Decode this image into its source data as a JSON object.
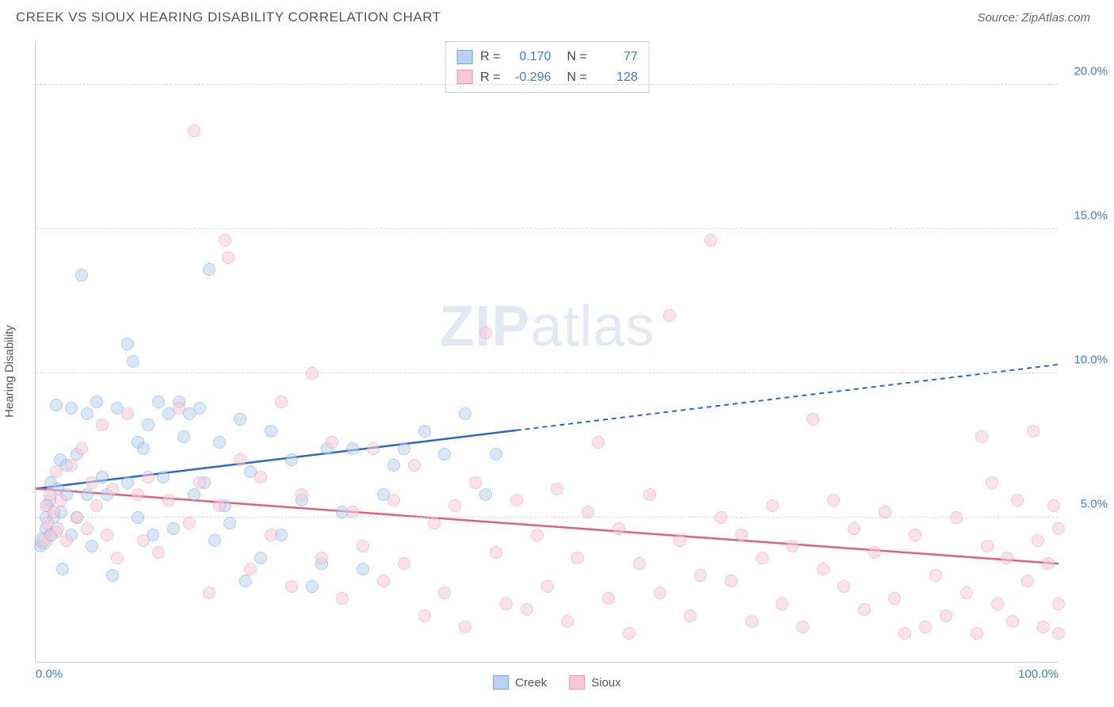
{
  "header": {
    "title": "CREEK VS SIOUX HEARING DISABILITY CORRELATION CHART",
    "source": "Source: ZipAtlas.com"
  },
  "ylabel": "Hearing Disability",
  "watermark": {
    "prefix": "ZIP",
    "suffix": "atlas"
  },
  "chart": {
    "type": "scatter",
    "xlim": [
      0,
      100
    ],
    "ylim": [
      0,
      21.5
    ],
    "x_ticks": [
      {
        "v": 0,
        "label": "0.0%"
      },
      {
        "v": 100,
        "label": "100.0%"
      }
    ],
    "y_ticks": [
      {
        "v": 5,
        "label": "5.0%"
      },
      {
        "v": 10,
        "label": "10.0%"
      },
      {
        "v": 15,
        "label": "15.0%"
      },
      {
        "v": 20,
        "label": "20.0%"
      }
    ],
    "grid_color": "#dddddd",
    "background_color": "#ffffff",
    "series": [
      {
        "name": "Creek",
        "fill": "#b9d2f0",
        "stroke": "#6faae8",
        "line": "#2d69c4",
        "R": "0.170",
        "N": "77",
        "trend": {
          "x1": 0,
          "y1": 6.0,
          "x2": 100,
          "y2": 10.3,
          "solid_until_x": 47
        },
        "points": [
          {
            "x": 0.5,
            "y": 4.0
          },
          {
            "x": 0.8,
            "y": 4.2,
            "big": 1
          },
          {
            "x": 1.0,
            "y": 5.0
          },
          {
            "x": 1.0,
            "y": 4.6
          },
          {
            "x": 1.2,
            "y": 5.4
          },
          {
            "x": 1.4,
            "y": 5.6
          },
          {
            "x": 1.5,
            "y": 6.2
          },
          {
            "x": 1.5,
            "y": 4.4
          },
          {
            "x": 1.8,
            "y": 5.0
          },
          {
            "x": 2.0,
            "y": 8.9
          },
          {
            "x": 2.0,
            "y": 4.5
          },
          {
            "x": 2.2,
            "y": 6.0
          },
          {
            "x": 2.4,
            "y": 7.0
          },
          {
            "x": 2.5,
            "y": 5.2
          },
          {
            "x": 2.6,
            "y": 3.2
          },
          {
            "x": 3.0,
            "y": 6.8
          },
          {
            "x": 3.0,
            "y": 5.8
          },
          {
            "x": 3.5,
            "y": 4.4
          },
          {
            "x": 3.5,
            "y": 8.8
          },
          {
            "x": 4.0,
            "y": 7.2
          },
          {
            "x": 4.0,
            "y": 5.0
          },
          {
            "x": 4.5,
            "y": 13.4
          },
          {
            "x": 5.0,
            "y": 8.6
          },
          {
            "x": 5.0,
            "y": 5.8
          },
          {
            "x": 5.5,
            "y": 4.0
          },
          {
            "x": 6.0,
            "y": 9.0
          },
          {
            "x": 6.5,
            "y": 6.4
          },
          {
            "x": 7.0,
            "y": 5.8
          },
          {
            "x": 7.5,
            "y": 3.0
          },
          {
            "x": 8.0,
            "y": 8.8
          },
          {
            "x": 9.0,
            "y": 11.0
          },
          {
            "x": 9.0,
            "y": 6.2
          },
          {
            "x": 9.5,
            "y": 10.4
          },
          {
            "x": 10.0,
            "y": 7.6
          },
          {
            "x": 10.0,
            "y": 5.0
          },
          {
            "x": 10.5,
            "y": 7.4
          },
          {
            "x": 11.0,
            "y": 8.2
          },
          {
            "x": 11.5,
            "y": 4.4
          },
          {
            "x": 12.0,
            "y": 9.0
          },
          {
            "x": 12.5,
            "y": 6.4
          },
          {
            "x": 13.0,
            "y": 8.6
          },
          {
            "x": 13.5,
            "y": 4.6
          },
          {
            "x": 14.0,
            "y": 9.0
          },
          {
            "x": 14.5,
            "y": 7.8
          },
          {
            "x": 15.0,
            "y": 8.6
          },
          {
            "x": 15.5,
            "y": 5.8
          },
          {
            "x": 16.0,
            "y": 8.8
          },
          {
            "x": 16.5,
            "y": 6.2
          },
          {
            "x": 17.0,
            "y": 13.6
          },
          {
            "x": 17.5,
            "y": 4.2
          },
          {
            "x": 18.0,
            "y": 7.6
          },
          {
            "x": 18.5,
            "y": 5.4
          },
          {
            "x": 19.0,
            "y": 4.8
          },
          {
            "x": 20.0,
            "y": 8.4
          },
          {
            "x": 20.5,
            "y": 2.8
          },
          {
            "x": 21.0,
            "y": 6.6
          },
          {
            "x": 22.0,
            "y": 3.6
          },
          {
            "x": 23.0,
            "y": 8.0
          },
          {
            "x": 24.0,
            "y": 4.4
          },
          {
            "x": 25.0,
            "y": 7.0
          },
          {
            "x": 26.0,
            "y": 5.6
          },
          {
            "x": 27.0,
            "y": 2.6
          },
          {
            "x": 28.0,
            "y": 3.4
          },
          {
            "x": 28.5,
            "y": 7.4
          },
          {
            "x": 30.0,
            "y": 5.2
          },
          {
            "x": 31.0,
            "y": 7.4
          },
          {
            "x": 32.0,
            "y": 3.2
          },
          {
            "x": 34.0,
            "y": 5.8
          },
          {
            "x": 35.0,
            "y": 6.8
          },
          {
            "x": 36.0,
            "y": 7.4
          },
          {
            "x": 38.0,
            "y": 8.0
          },
          {
            "x": 40.0,
            "y": 7.2
          },
          {
            "x": 42.0,
            "y": 8.6
          },
          {
            "x": 44.0,
            "y": 5.8
          },
          {
            "x": 45.0,
            "y": 7.2
          }
        ]
      },
      {
        "name": "Sioux",
        "fill": "#f7cbd6",
        "stroke": "#ed9ab0",
        "line": "#e0607f",
        "R": "-0.296",
        "N": "128",
        "trend": {
          "x1": 0,
          "y1": 6.0,
          "x2": 100,
          "y2": 3.4,
          "solid_until_x": 100
        },
        "points": [
          {
            "x": 0.8,
            "y": 4.2
          },
          {
            "x": 1.0,
            "y": 5.4
          },
          {
            "x": 1.2,
            "y": 4.8
          },
          {
            "x": 1.4,
            "y": 5.8
          },
          {
            "x": 1.5,
            "y": 4.4
          },
          {
            "x": 1.8,
            "y": 5.2
          },
          {
            "x": 2.0,
            "y": 6.6
          },
          {
            "x": 2.2,
            "y": 4.6
          },
          {
            "x": 2.5,
            "y": 5.6
          },
          {
            "x": 3.0,
            "y": 4.2
          },
          {
            "x": 3.5,
            "y": 6.8
          },
          {
            "x": 4.0,
            "y": 5.0
          },
          {
            "x": 4.5,
            "y": 7.4
          },
          {
            "x": 5.0,
            "y": 4.6
          },
          {
            "x": 5.5,
            "y": 6.2
          },
          {
            "x": 6.0,
            "y": 5.4
          },
          {
            "x": 6.5,
            "y": 8.2
          },
          {
            "x": 7.0,
            "y": 4.4
          },
          {
            "x": 7.5,
            "y": 6.0
          },
          {
            "x": 8.0,
            "y": 3.6
          },
          {
            "x": 9.0,
            "y": 8.6
          },
          {
            "x": 10.0,
            "y": 5.8
          },
          {
            "x": 10.5,
            "y": 4.2
          },
          {
            "x": 11.0,
            "y": 6.4
          },
          {
            "x": 12.0,
            "y": 3.8
          },
          {
            "x": 13.0,
            "y": 5.6
          },
          {
            "x": 14.0,
            "y": 8.8
          },
          {
            "x": 15.0,
            "y": 4.8
          },
          {
            "x": 15.5,
            "y": 18.4
          },
          {
            "x": 16.0,
            "y": 6.2
          },
          {
            "x": 17.0,
            "y": 2.4
          },
          {
            "x": 18.0,
            "y": 5.4
          },
          {
            "x": 18.5,
            "y": 14.6
          },
          {
            "x": 18.8,
            "y": 14.0
          },
          {
            "x": 20.0,
            "y": 7.0
          },
          {
            "x": 21.0,
            "y": 3.2
          },
          {
            "x": 22.0,
            "y": 6.4
          },
          {
            "x": 23.0,
            "y": 4.4
          },
          {
            "x": 24.0,
            "y": 9.0
          },
          {
            "x": 25.0,
            "y": 2.6
          },
          {
            "x": 26.0,
            "y": 5.8
          },
          {
            "x": 27.0,
            "y": 10.0
          },
          {
            "x": 28.0,
            "y": 3.6
          },
          {
            "x": 29.0,
            "y": 7.6
          },
          {
            "x": 30.0,
            "y": 2.2
          },
          {
            "x": 31.0,
            "y": 5.2
          },
          {
            "x": 32.0,
            "y": 4.0
          },
          {
            "x": 33.0,
            "y": 7.4
          },
          {
            "x": 34.0,
            "y": 2.8
          },
          {
            "x": 35.0,
            "y": 5.6
          },
          {
            "x": 36.0,
            "y": 3.4
          },
          {
            "x": 37.0,
            "y": 6.8
          },
          {
            "x": 38.0,
            "y": 1.6
          },
          {
            "x": 39.0,
            "y": 4.8
          },
          {
            "x": 40.0,
            "y": 2.4
          },
          {
            "x": 41.0,
            "y": 5.4
          },
          {
            "x": 42.0,
            "y": 1.2
          },
          {
            "x": 43.0,
            "y": 6.2
          },
          {
            "x": 44.0,
            "y": 11.4
          },
          {
            "x": 45.0,
            "y": 3.8
          },
          {
            "x": 46.0,
            "y": 2.0
          },
          {
            "x": 47.0,
            "y": 5.6
          },
          {
            "x": 48.0,
            "y": 1.8
          },
          {
            "x": 49.0,
            "y": 4.4
          },
          {
            "x": 50.0,
            "y": 2.6
          },
          {
            "x": 51.0,
            "y": 6.0
          },
          {
            "x": 52.0,
            "y": 1.4
          },
          {
            "x": 53.0,
            "y": 3.6
          },
          {
            "x": 54.0,
            "y": 5.2
          },
          {
            "x": 55.0,
            "y": 7.6
          },
          {
            "x": 56.0,
            "y": 2.2
          },
          {
            "x": 57.0,
            "y": 4.6
          },
          {
            "x": 58.0,
            "y": 1.0
          },
          {
            "x": 59.0,
            "y": 3.4
          },
          {
            "x": 60.0,
            "y": 5.8
          },
          {
            "x": 61.0,
            "y": 2.4
          },
          {
            "x": 62.0,
            "y": 12.0
          },
          {
            "x": 63.0,
            "y": 4.2
          },
          {
            "x": 64.0,
            "y": 1.6
          },
          {
            "x": 65.0,
            "y": 3.0
          },
          {
            "x": 66.0,
            "y": 14.6
          },
          {
            "x": 67.0,
            "y": 5.0
          },
          {
            "x": 68.0,
            "y": 2.8
          },
          {
            "x": 69.0,
            "y": 4.4
          },
          {
            "x": 70.0,
            "y": 1.4
          },
          {
            "x": 71.0,
            "y": 3.6
          },
          {
            "x": 72.0,
            "y": 5.4
          },
          {
            "x": 73.0,
            "y": 2.0
          },
          {
            "x": 74.0,
            "y": 4.0
          },
          {
            "x": 75.0,
            "y": 1.2
          },
          {
            "x": 76.0,
            "y": 8.4
          },
          {
            "x": 77.0,
            "y": 3.2
          },
          {
            "x": 78.0,
            "y": 5.6
          },
          {
            "x": 79.0,
            "y": 2.6
          },
          {
            "x": 80.0,
            "y": 4.6
          },
          {
            "x": 81.0,
            "y": 1.8
          },
          {
            "x": 82.0,
            "y": 3.8
          },
          {
            "x": 83.0,
            "y": 5.2
          },
          {
            "x": 84.0,
            "y": 2.2
          },
          {
            "x": 85.0,
            "y": 1.0
          },
          {
            "x": 86.0,
            "y": 4.4
          },
          {
            "x": 87.0,
            "y": 1.2
          },
          {
            "x": 88.0,
            "y": 3.0
          },
          {
            "x": 89.0,
            "y": 1.6
          },
          {
            "x": 90.0,
            "y": 5.0
          },
          {
            "x": 91.0,
            "y": 2.4
          },
          {
            "x": 92.0,
            "y": 1.0
          },
          {
            "x": 92.5,
            "y": 7.8
          },
          {
            "x": 93.0,
            "y": 4.0
          },
          {
            "x": 93.5,
            "y": 6.2
          },
          {
            "x": 94.0,
            "y": 2.0
          },
          {
            "x": 95.0,
            "y": 3.6
          },
          {
            "x": 95.5,
            "y": 1.4
          },
          {
            "x": 96.0,
            "y": 5.6
          },
          {
            "x": 97.0,
            "y": 2.8
          },
          {
            "x": 97.5,
            "y": 8.0
          },
          {
            "x": 98.0,
            "y": 4.2
          },
          {
            "x": 98.5,
            "y": 1.2
          },
          {
            "x": 99.0,
            "y": 3.4
          },
          {
            "x": 99.5,
            "y": 5.4
          },
          {
            "x": 100.0,
            "y": 2.0
          },
          {
            "x": 100.0,
            "y": 4.6
          },
          {
            "x": 100.0,
            "y": 1.0
          }
        ]
      }
    ]
  },
  "legend_top_labels": {
    "R": "R =",
    "N": "N ="
  },
  "legend_bottom": [
    {
      "label": "Creek",
      "fill": "#b9d2f0",
      "stroke": "#6faae8"
    },
    {
      "label": "Sioux",
      "fill": "#f7cbd6",
      "stroke": "#ed9ab0"
    }
  ]
}
